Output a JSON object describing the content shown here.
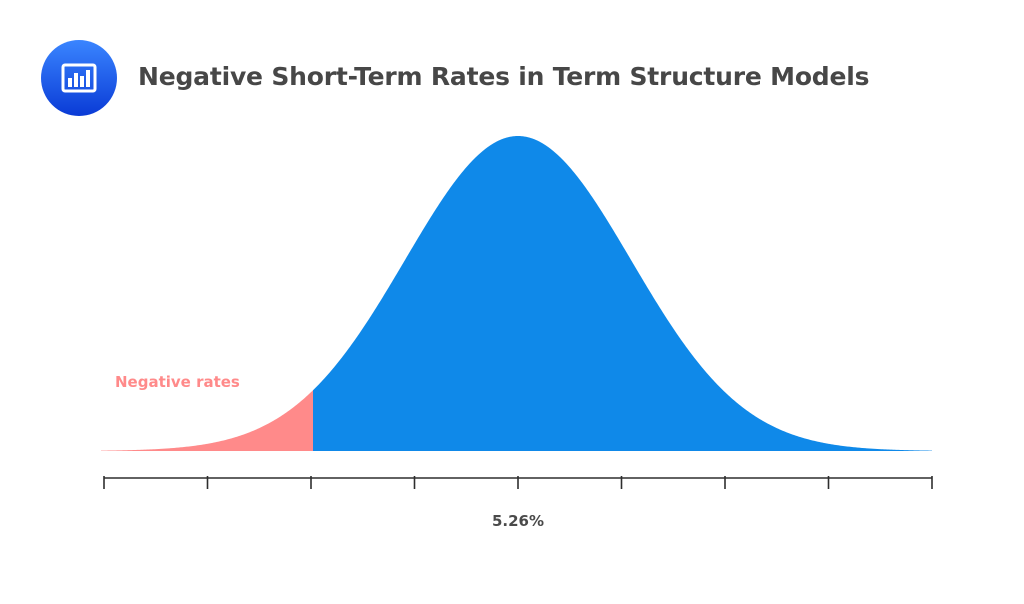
{
  "header": {
    "title": "Negative Short-Term Rates in Term Structure Models",
    "icon": "bar-chart-icon"
  },
  "colors": {
    "main_fill": "#0f89e9",
    "negative_fill": "#ff8a8a",
    "axis": "#2e2e2e",
    "icon_gradient_start": "#3a85ff",
    "icon_gradient_end": "#0a3bd6"
  },
  "chart_data": {
    "type": "area",
    "title": "Negative Short-Term Rates in Term Structure Models",
    "xlabel": "",
    "ylabel": "",
    "grid": false,
    "distribution": "normal",
    "series": [
      {
        "values": [
          {
            "x": -2,
            "y": 0.054
          },
          {
            "x": -1.5,
            "y": 0.13
          },
          {
            "x": -1,
            "y": 0.242
          },
          {
            "x": -0.5,
            "y": 0.352
          },
          {
            "x": 0,
            "y": 0.399
          },
          {
            "x": 0.5,
            "y": 0.352
          },
          {
            "x": 1,
            "y": 0.242
          },
          {
            "x": 1.5,
            "y": 0.13
          },
          {
            "x": 2,
            "y": 0.054
          }
        ]
      }
    ],
    "x_ticks_count": 9,
    "tick_labels": [
      "",
      "",
      "",
      "",
      "5.26%",
      "",
      "",
      "",
      ""
    ],
    "shaded_region": {
      "label": "Negative rates",
      "from_tick": 0,
      "to_tick": 2
    }
  }
}
